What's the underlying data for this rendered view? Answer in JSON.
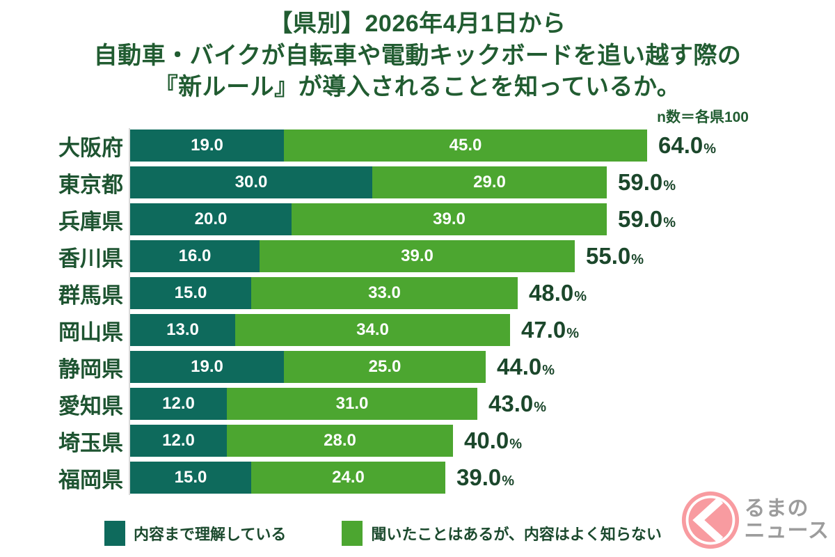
{
  "title": {
    "line1": "【県別】2026年4月1日から",
    "line2": "自動車・バイクが自転車や電動キックボードを追い越す際の",
    "line3": "『新ルール』が導入されることを知っているか。"
  },
  "n_note": "n数＝各県100",
  "chart_data": {
    "type": "bar",
    "orientation": "horizontal",
    "stacked": true,
    "grid": false,
    "legend_position": "bottom",
    "xlim": [
      0,
      64
    ],
    "value_decimals": 1,
    "total_suffix": "%",
    "categories": [
      "大阪府",
      "東京都",
      "兵庫県",
      "香川県",
      "群馬県",
      "岡山県",
      "静岡県",
      "愛知県",
      "埼玉県",
      "福岡県"
    ],
    "series": [
      {
        "name": "内容まで理解している",
        "color": "#0E6A5C",
        "values": [
          19,
          30,
          20,
          16,
          15,
          13,
          19,
          12,
          12,
          15
        ]
      },
      {
        "name": "聞いたことはあるが、内容はよく知らない",
        "color": "#4CA630",
        "values": [
          45,
          29,
          39,
          39,
          33,
          34,
          25,
          31,
          28,
          24
        ]
      }
    ],
    "totals": [
      64,
      59,
      59,
      55,
      48,
      47,
      44,
      43,
      40,
      39
    ]
  },
  "colors": {
    "title_text": "#215C31",
    "total_text": "#1B472B",
    "segment_understand": "#0E6A5C",
    "segment_heard": "#4CA630",
    "axis_line": "#d9d9d9",
    "logo_pink": "#F89BA0",
    "logo_gray": "#9C9C9C"
  },
  "logo": {
    "text_top": "るまの",
    "text_bottom": "ニュース"
  }
}
